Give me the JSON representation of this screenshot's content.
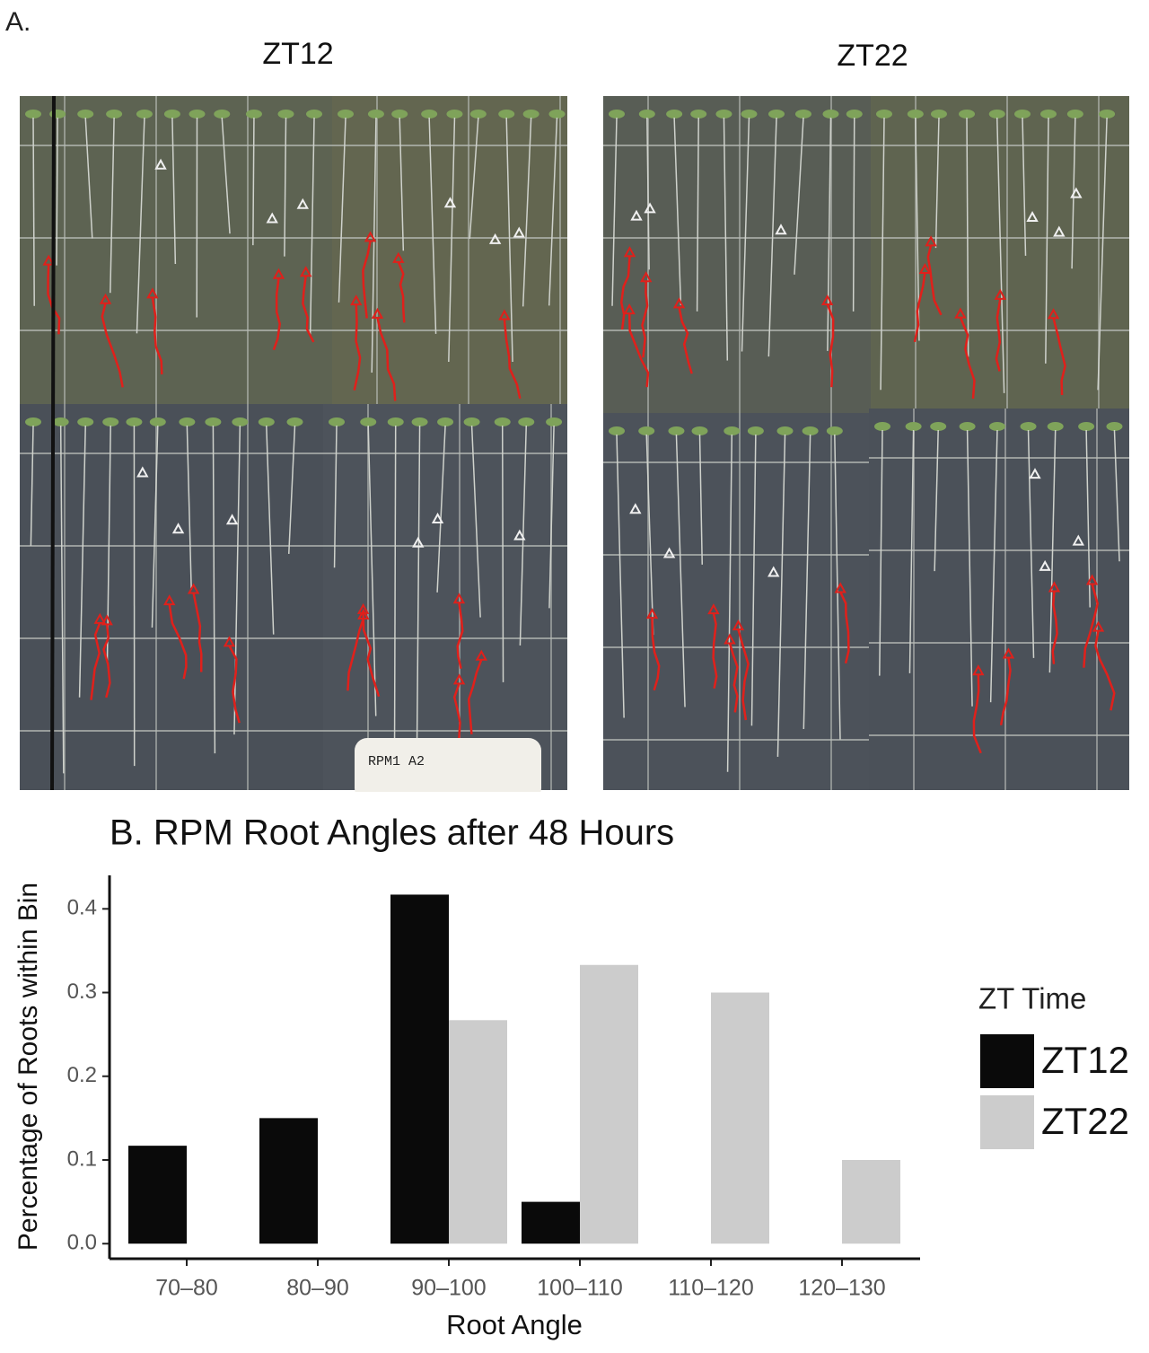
{
  "figure": {
    "panel_a_label": "A.",
    "photo_titles": [
      "ZT12",
      "ZT22"
    ],
    "plate_label": "RPM1 A2"
  },
  "chart_data": {
    "type": "bar",
    "title": "B. RPM Root Angles after 48 Hours",
    "x_label": "Root Angle",
    "y_label": "Percentage of Roots within Bin",
    "categories": [
      "70–80",
      "80–90",
      "90–100",
      "100–110",
      "110–120",
      "120–130"
    ],
    "series": [
      {
        "name": "ZT12",
        "color": "#0a0a0a",
        "values": [
          0.117,
          0.15,
          0.417,
          0.05,
          0,
          0
        ]
      },
      {
        "name": "ZT22",
        "color": "#cccccc",
        "values": [
          0,
          0,
          0.267,
          0.333,
          0.3,
          0.1
        ]
      }
    ],
    "ylim": [
      -0.018,
      0.44
    ],
    "yticks": [
      {
        "value": 0,
        "label": "0.0"
      },
      0.1,
      0.2,
      0.3,
      0.4
    ],
    "legend_title": "ZT Time",
    "legend": "right",
    "grid": false
  }
}
